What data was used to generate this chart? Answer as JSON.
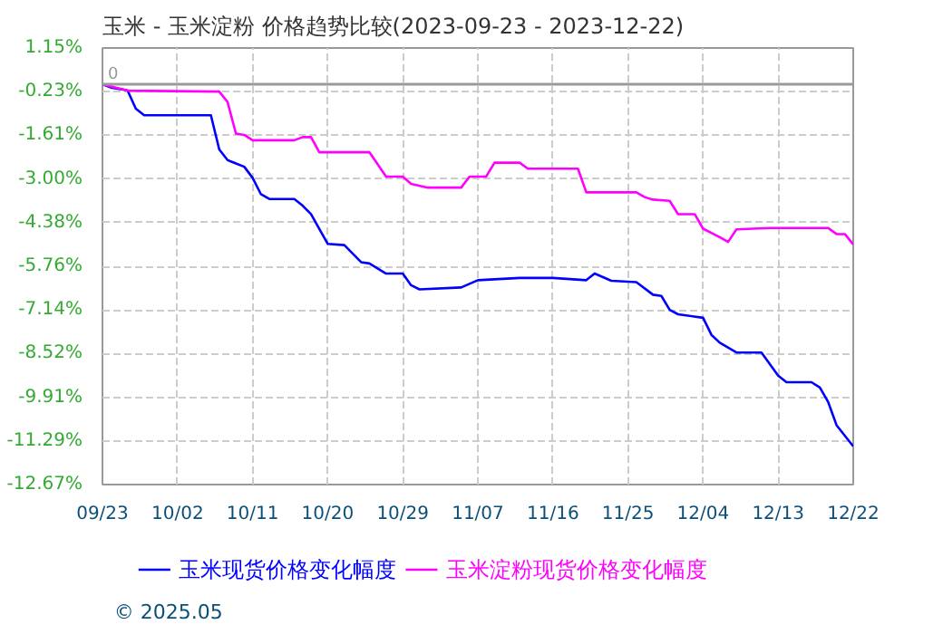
{
  "chart_data": {
    "type": "line",
    "title": "玉米 - 玉米淀粉 价格趋势比较(2023-09-23 - 2023-12-22)",
    "series": [
      {
        "name": "玉米现货价格变化幅度",
        "color": "#0000ff",
        "x": [
          "2023-09-23",
          "2023-09-24",
          "2023-09-26",
          "2023-09-27",
          "2023-09-28",
          "2023-10-06",
          "2023-10-07",
          "2023-10-08",
          "2023-10-10",
          "2023-10-11",
          "2023-10-12",
          "2023-10-13",
          "2023-10-16",
          "2023-10-17",
          "2023-10-18",
          "2023-10-20",
          "2023-10-22",
          "2023-10-24",
          "2023-10-25",
          "2023-10-27",
          "2023-10-29",
          "2023-10-30",
          "2023-10-31",
          "2023-11-05",
          "2023-11-07",
          "2023-11-12",
          "2023-11-16",
          "2023-11-20",
          "2023-11-21",
          "2023-11-23",
          "2023-11-26",
          "2023-11-28",
          "2023-11-29",
          "2023-11-30",
          "2023-12-01",
          "2023-12-04",
          "2023-12-05",
          "2023-12-06",
          "2023-12-08",
          "2023-12-11",
          "2023-12-13",
          "2023-12-14",
          "2023-12-17",
          "2023-12-18",
          "2023-12-19",
          "2023-12-20",
          "2023-12-22"
        ],
        "values": [
          0,
          -0.1,
          -0.19,
          -0.77,
          -0.98,
          -0.98,
          -2.06,
          -2.4,
          -2.61,
          -2.96,
          -3.48,
          -3.63,
          -3.63,
          -3.84,
          -4.11,
          -5.05,
          -5.09,
          -5.63,
          -5.67,
          -5.99,
          -5.99,
          -6.36,
          -6.49,
          -6.43,
          -6.2,
          -6.13,
          -6.13,
          -6.2,
          -5.99,
          -6.22,
          -6.26,
          -6.66,
          -6.7,
          -7.14,
          -7.28,
          -7.39,
          -7.93,
          -8.18,
          -8.49,
          -8.49,
          -9.22,
          -9.43,
          -9.43,
          -9.6,
          -10.06,
          -10.79,
          -11.46
        ]
      },
      {
        "name": "玉米淀粉现货价格变化幅度",
        "color": "#ff00ff",
        "x": [
          "2023-09-23",
          "2023-09-26",
          "2023-10-07",
          "2023-10-08",
          "2023-10-09",
          "2023-10-10",
          "2023-10-11",
          "2023-10-16",
          "2023-10-17",
          "2023-10-18",
          "2023-10-19",
          "2023-10-25",
          "2023-10-27",
          "2023-10-29",
          "2023-10-30",
          "2023-11-01",
          "2023-11-05",
          "2023-11-06",
          "2023-11-08",
          "2023-11-09",
          "2023-11-12",
          "2023-11-13",
          "2023-11-19",
          "2023-11-20",
          "2023-11-26",
          "2023-11-27",
          "2023-11-28",
          "2023-11-30",
          "2023-12-01",
          "2023-12-03",
          "2023-12-04",
          "2023-12-06",
          "2023-12-07",
          "2023-12-08",
          "2023-12-12",
          "2023-12-19",
          "2023-12-20",
          "2023-12-21",
          "2023-12-22"
        ],
        "values": [
          0,
          -0.2,
          -0.23,
          -0.56,
          -1.56,
          -1.6,
          -1.77,
          -1.77,
          -1.67,
          -1.67,
          -2.15,
          -2.15,
          -2.92,
          -2.92,
          -3.15,
          -3.27,
          -3.27,
          -2.92,
          -2.92,
          -2.48,
          -2.48,
          -2.67,
          -2.67,
          -3.42,
          -3.42,
          -3.57,
          -3.65,
          -3.69,
          -4.11,
          -4.11,
          -4.57,
          -4.84,
          -4.99,
          -4.59,
          -4.55,
          -4.55,
          -4.74,
          -4.74,
          -5.07
        ]
      }
    ],
    "xlim": [
      "2023-09-23",
      "2023-12-22"
    ],
    "xticks": [
      {
        "value": "2023-09-23",
        "label": "09/23"
      },
      {
        "value": "2023-10-02",
        "label": "10/02"
      },
      {
        "value": "2023-10-11",
        "label": "10/11"
      },
      {
        "value": "2023-10-20",
        "label": "10/20"
      },
      {
        "value": "2023-10-29",
        "label": "10/29"
      },
      {
        "value": "2023-11-07",
        "label": "11/07"
      },
      {
        "value": "2023-11-16",
        "label": "11/16"
      },
      {
        "value": "2023-11-25",
        "label": "11/25"
      },
      {
        "value": "2023-12-04",
        "label": "12/04"
      },
      {
        "value": "2023-12-13",
        "label": "12/13"
      },
      {
        "value": "2023-12-22",
        "label": "12/22"
      }
    ],
    "ylim": [
      -12.67,
      1.15
    ],
    "yticks": [
      {
        "value": 1.15,
        "label": "1.15%"
      },
      {
        "value": -0.23,
        "label": "-0.23%"
      },
      {
        "value": -1.61,
        "label": "-1.61%"
      },
      {
        "value": -3.0,
        "label": "-3.00%"
      },
      {
        "value": -4.38,
        "label": "-4.38%"
      },
      {
        "value": -5.76,
        "label": "-5.76%"
      },
      {
        "value": -7.14,
        "label": "-7.14%"
      },
      {
        "value": -8.52,
        "label": "-8.52%"
      },
      {
        "value": -9.91,
        "label": "-9.91%"
      },
      {
        "value": -11.29,
        "label": "-11.29%"
      },
      {
        "value": -12.67,
        "label": "-12.67%"
      }
    ],
    "ref_lines": [
      {
        "axis": "y",
        "value": 0,
        "label": "0",
        "color": "#999999"
      }
    ],
    "grid": true,
    "legend": "bottom",
    "line_style": "solid",
    "marker": "none",
    "annotations": [
      "© 2025.05"
    ]
  }
}
